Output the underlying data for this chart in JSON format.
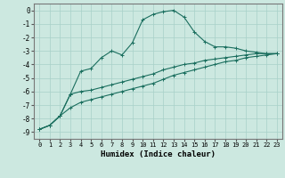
{
  "xlabel": "Humidex (Indice chaleur)",
  "xlim": [
    -0.5,
    23.5
  ],
  "ylim": [
    -9.5,
    0.5
  ],
  "xticks": [
    0,
    1,
    2,
    3,
    4,
    5,
    6,
    7,
    8,
    9,
    10,
    11,
    12,
    13,
    14,
    15,
    16,
    17,
    18,
    19,
    20,
    21,
    22,
    23
  ],
  "yticks": [
    0,
    -1,
    -2,
    -3,
    -4,
    -5,
    -6,
    -7,
    -8,
    -9
  ],
  "bg_color": "#cce8e0",
  "line_color": "#1a6e5e",
  "grid_color": "#a8d0c8",
  "line1_x": [
    0,
    1,
    2,
    3,
    4,
    5,
    6,
    7,
    8,
    9,
    10,
    11,
    12,
    13,
    14,
    15,
    16,
    17,
    18,
    19,
    20,
    21,
    22,
    23
  ],
  "line1_y": [
    -8.8,
    -8.5,
    -7.8,
    -6.2,
    -4.5,
    -4.3,
    -3.5,
    -3.0,
    -3.3,
    -2.4,
    -0.7,
    -0.3,
    -0.1,
    0.0,
    -0.5,
    -1.6,
    -2.3,
    -2.7,
    -2.7,
    -2.8,
    -3.0,
    -3.1,
    -3.2,
    -3.2
  ],
  "line2_x": [
    0,
    1,
    2,
    3,
    4,
    5,
    6,
    7,
    8,
    9,
    10,
    11,
    12,
    13,
    14,
    15,
    16,
    17,
    18,
    19,
    20,
    21,
    22,
    23
  ],
  "line2_y": [
    -8.8,
    -8.5,
    -7.8,
    -6.2,
    -6.0,
    -5.9,
    -5.7,
    -5.5,
    -5.3,
    -5.1,
    -4.9,
    -4.7,
    -4.4,
    -4.2,
    -4.0,
    -3.9,
    -3.7,
    -3.6,
    -3.5,
    -3.4,
    -3.3,
    -3.2,
    -3.2,
    -3.2
  ],
  "line3_x": [
    0,
    1,
    2,
    3,
    4,
    5,
    6,
    7,
    8,
    9,
    10,
    11,
    12,
    13,
    14,
    15,
    16,
    17,
    18,
    19,
    20,
    21,
    22,
    23
  ],
  "line3_y": [
    -8.8,
    -8.5,
    -7.8,
    -7.2,
    -6.8,
    -6.6,
    -6.4,
    -6.2,
    -6.0,
    -5.8,
    -5.6,
    -5.4,
    -5.1,
    -4.8,
    -4.6,
    -4.4,
    -4.2,
    -4.0,
    -3.8,
    -3.7,
    -3.5,
    -3.4,
    -3.3,
    -3.2
  ]
}
